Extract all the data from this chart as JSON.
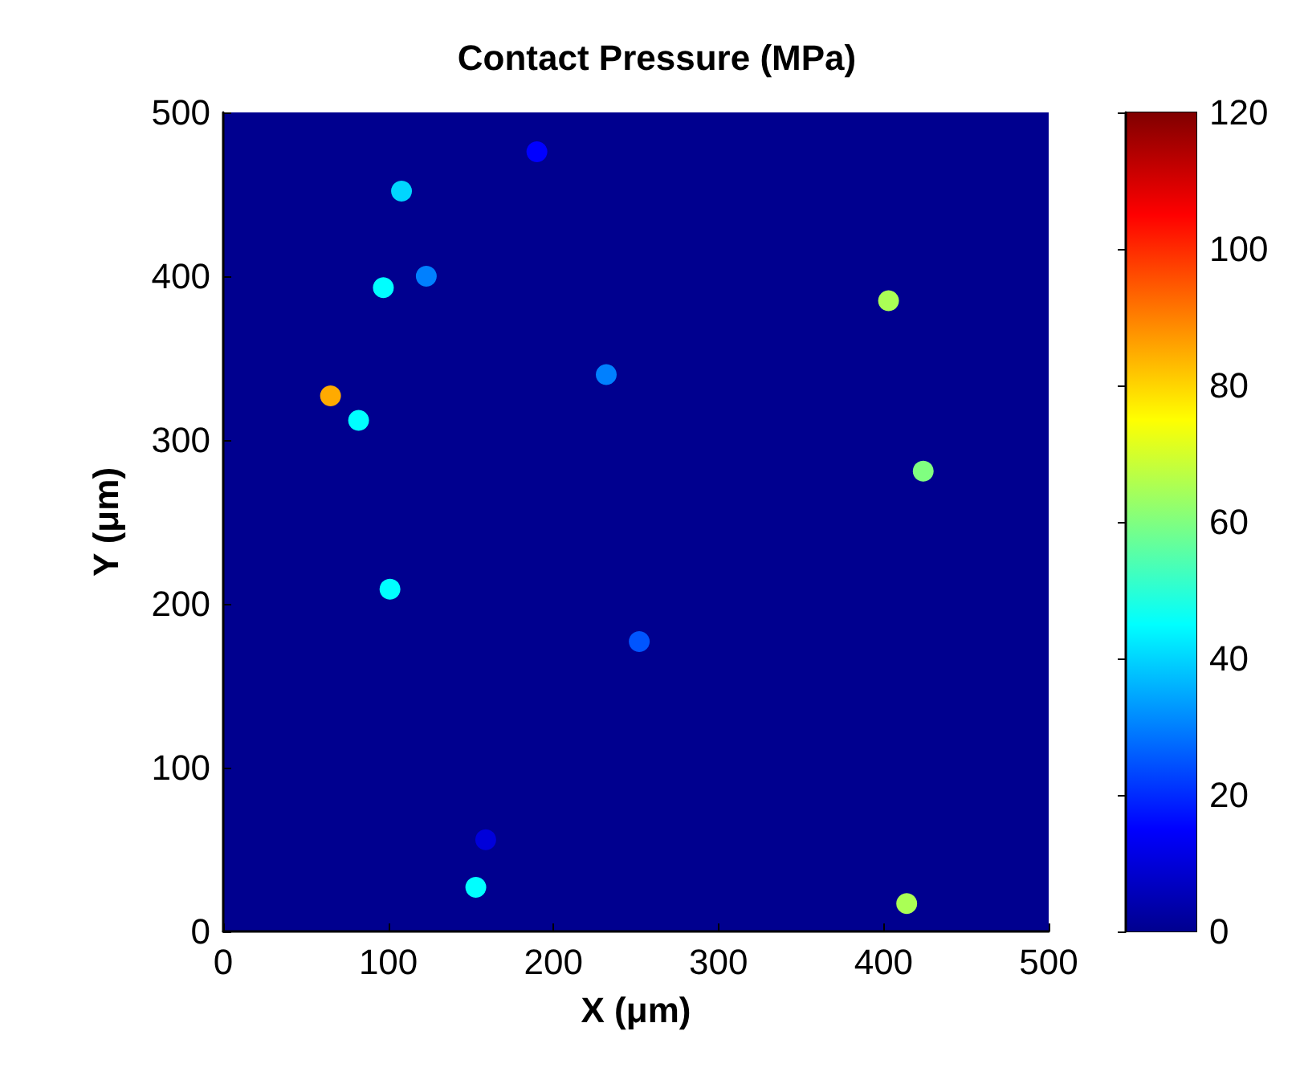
{
  "chart_data": {
    "type": "scatter",
    "title": "Contact Pressure (MPa)",
    "xlabel": "X (μm)",
    "ylabel": "Y (μm)",
    "x": [
      190,
      108,
      123,
      97,
      65,
      82,
      232,
      403,
      424,
      101,
      252,
      159,
      153,
      414
    ],
    "values": [
      476,
      452,
      400,
      393,
      327,
      312,
      340,
      385,
      281,
      209,
      177,
      56,
      27,
      17
    ],
    "cvalues": [
      15,
      40,
      30,
      45,
      85,
      45,
      30,
      65,
      60,
      45,
      25,
      10,
      45,
      65
    ],
    "clim": [
      0,
      120
    ],
    "cticks": [
      0,
      20,
      40,
      60,
      80,
      100,
      120
    ],
    "xlim": [
      0,
      500
    ],
    "xticks": [
      0,
      100,
      200,
      300,
      400,
      500
    ],
    "ylim": [
      0,
      500
    ],
    "yticks": [
      0,
      100,
      200,
      300,
      400,
      500
    ],
    "marker": "circle",
    "grid": false
  }
}
